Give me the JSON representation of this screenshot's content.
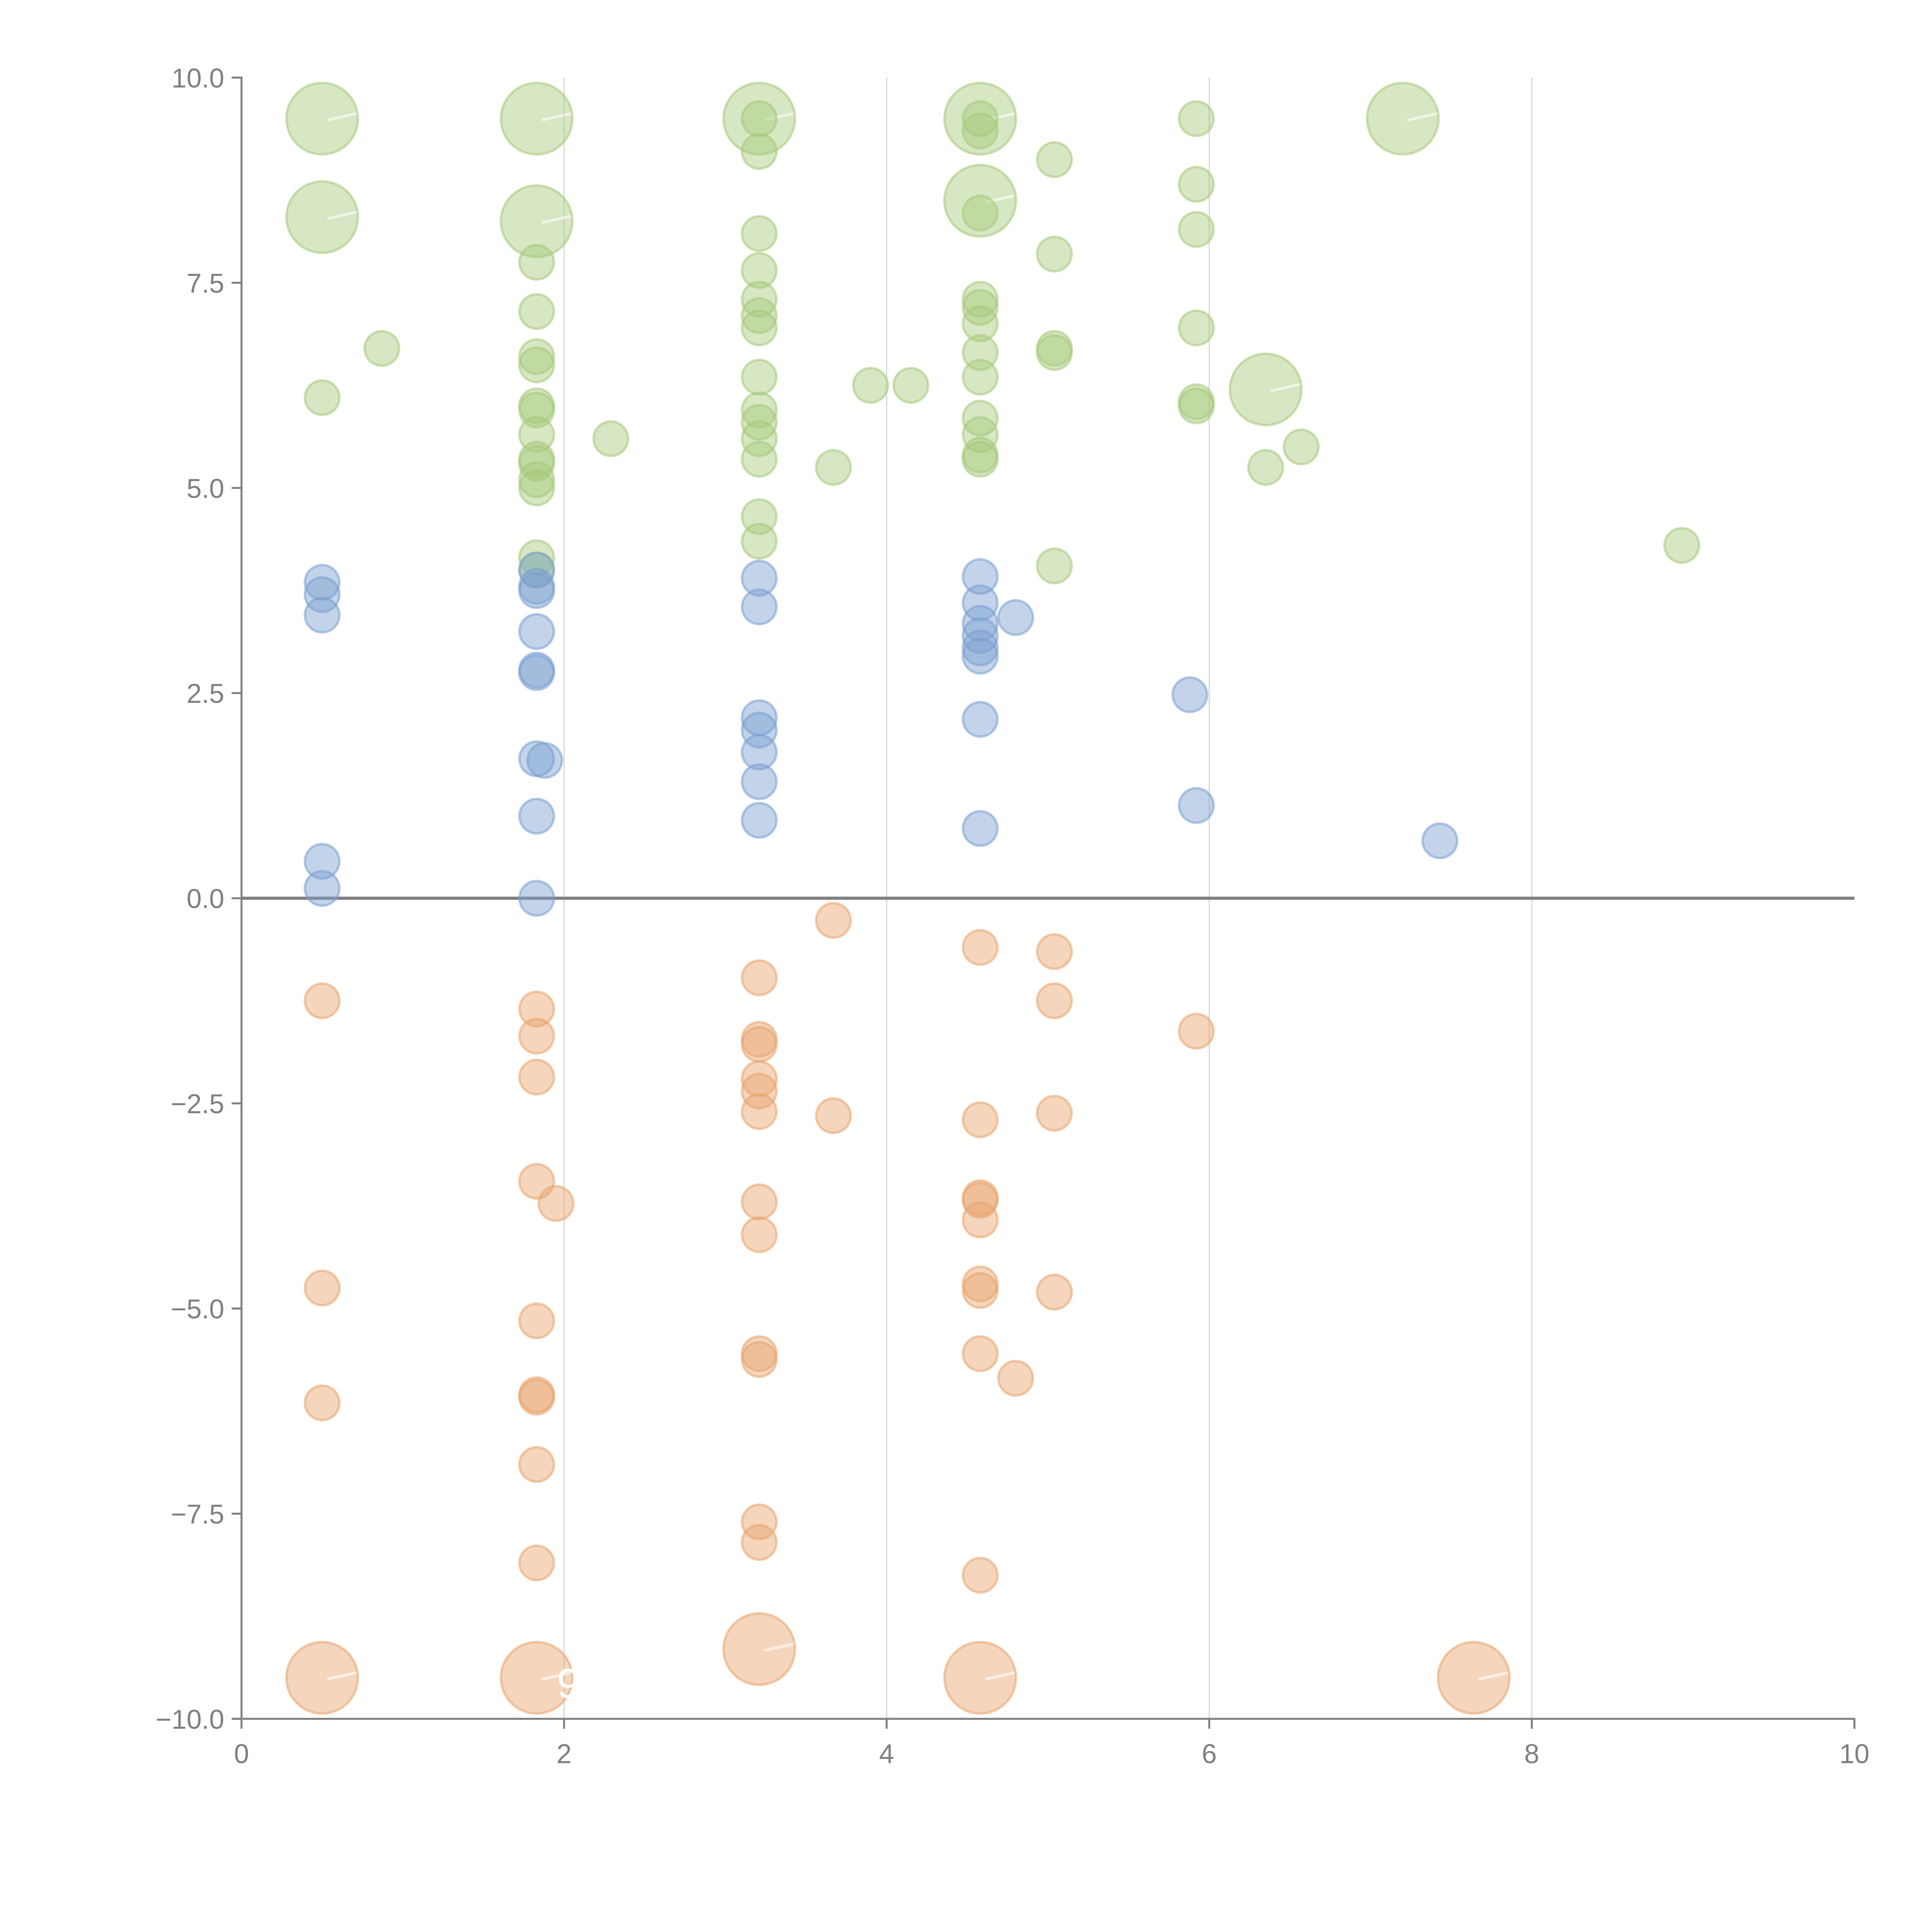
{
  "chart_data": {
    "type": "scatter",
    "title": "",
    "xlabel": "",
    "ylabel": "",
    "xlim": [
      0,
      10
    ],
    "ylim": [
      -10,
      10
    ],
    "grid": "vertical",
    "legend": "none",
    "x_ticks": [
      "0",
      "2",
      "4",
      "6",
      "8",
      "10"
    ],
    "x_tick_values": [
      0,
      2,
      4,
      6,
      8,
      10
    ],
    "y_ticks": [
      "10.0",
      "7.5",
      "5.0",
      "2.5",
      "0.0",
      "−2.5",
      "−5.0",
      "−7.5",
      "−10.0"
    ],
    "y_tick_values": [
      10,
      7.5,
      5,
      2.5,
      0,
      -2.5,
      -5,
      -7.5,
      -10
    ],
    "reference_line_y": 0,
    "annotation": "9",
    "series": [
      {
        "name": "positive-high",
        "color": "#a6c97a",
        "points": [
          [
            0.5,
            9.5,
            3
          ],
          [
            0.5,
            8.3,
            3
          ],
          [
            0.87,
            6.7,
            1
          ],
          [
            0.5,
            6.1,
            1
          ],
          [
            1.83,
            9.5,
            3
          ],
          [
            1.83,
            8.25,
            3
          ],
          [
            1.83,
            7.75,
            1
          ],
          [
            1.83,
            7.15,
            1
          ],
          [
            1.83,
            6.6,
            1
          ],
          [
            1.83,
            6.5,
            1
          ],
          [
            1.83,
            6.0,
            1
          ],
          [
            1.83,
            5.95,
            1
          ],
          [
            1.83,
            5.65,
            1
          ],
          [
            1.83,
            5.35,
            1
          ],
          [
            1.83,
            5.3,
            1
          ],
          [
            1.83,
            5.1,
            1
          ],
          [
            1.83,
            5.0,
            1
          ],
          [
            1.83,
            4.15,
            1
          ],
          [
            1.83,
            4.0,
            1
          ],
          [
            2.29,
            5.6,
            1
          ],
          [
            3.21,
            9.5,
            3
          ],
          [
            3.21,
            9.5,
            1
          ],
          [
            3.21,
            9.1,
            1
          ],
          [
            3.21,
            8.1,
            1
          ],
          [
            3.21,
            7.65,
            1
          ],
          [
            3.21,
            7.3,
            1
          ],
          [
            3.21,
            7.1,
            1
          ],
          [
            3.21,
            6.95,
            1
          ],
          [
            3.21,
            6.35,
            1
          ],
          [
            3.21,
            5.95,
            1
          ],
          [
            3.21,
            5.8,
            1
          ],
          [
            3.21,
            5.6,
            1
          ],
          [
            3.21,
            5.35,
            1
          ],
          [
            3.21,
            4.65,
            1
          ],
          [
            3.21,
            4.35,
            1
          ],
          [
            3.67,
            5.25,
            1
          ],
          [
            3.9,
            6.25,
            1
          ],
          [
            4.15,
            6.25,
            1
          ],
          [
            4.58,
            9.5,
            3
          ],
          [
            4.58,
            9.5,
            1
          ],
          [
            4.58,
            9.35,
            1
          ],
          [
            4.58,
            8.5,
            3
          ],
          [
            4.58,
            8.35,
            1
          ],
          [
            4.58,
            7.3,
            1
          ],
          [
            4.58,
            7.2,
            1
          ],
          [
            4.58,
            7.0,
            1
          ],
          [
            4.58,
            6.65,
            1
          ],
          [
            4.58,
            6.35,
            1
          ],
          [
            4.58,
            5.85,
            1
          ],
          [
            4.58,
            5.65,
            1
          ],
          [
            4.58,
            5.4,
            1
          ],
          [
            4.58,
            5.35,
            1
          ],
          [
            5.04,
            9.0,
            1
          ],
          [
            5.04,
            7.85,
            1
          ],
          [
            5.04,
            6.7,
            1
          ],
          [
            5.04,
            6.65,
            1
          ],
          [
            5.04,
            4.05,
            1
          ],
          [
            5.92,
            9.5,
            1
          ],
          [
            5.92,
            8.7,
            1
          ],
          [
            5.92,
            8.15,
            1
          ],
          [
            5.92,
            6.95,
            1
          ],
          [
            5.92,
            6.05,
            1
          ],
          [
            5.92,
            6.0,
            1
          ],
          [
            6.35,
            6.2,
            3
          ],
          [
            6.35,
            5.25,
            1
          ],
          [
            6.57,
            5.5,
            1
          ],
          [
            7.2,
            9.5,
            3
          ],
          [
            8.93,
            4.3,
            1
          ]
        ]
      },
      {
        "name": "positive-low",
        "color": "#7a9fd1",
        "points": [
          [
            0.5,
            3.85,
            1
          ],
          [
            0.5,
            3.7,
            1
          ],
          [
            0.5,
            3.45,
            1
          ],
          [
            0.5,
            0.45,
            1
          ],
          [
            0.5,
            0.12,
            1
          ],
          [
            1.83,
            4.0,
            1
          ],
          [
            1.83,
            3.8,
            1
          ],
          [
            1.83,
            3.75,
            1
          ],
          [
            1.83,
            3.25,
            1
          ],
          [
            1.83,
            2.78,
            1
          ],
          [
            1.83,
            2.75,
            1
          ],
          [
            1.83,
            1.7,
            1
          ],
          [
            1.88,
            1.68,
            1
          ],
          [
            1.83,
            1.0,
            1
          ],
          [
            1.83,
            0.0,
            1
          ],
          [
            3.21,
            3.9,
            1
          ],
          [
            3.21,
            3.55,
            1
          ],
          [
            3.21,
            2.2,
            1
          ],
          [
            3.21,
            2.05,
            1
          ],
          [
            3.21,
            1.78,
            1
          ],
          [
            3.21,
            1.42,
            1
          ],
          [
            3.21,
            0.95,
            1
          ],
          [
            4.58,
            3.92,
            1
          ],
          [
            4.58,
            3.6,
            1
          ],
          [
            4.58,
            3.35,
            1
          ],
          [
            4.58,
            3.2,
            1
          ],
          [
            4.58,
            3.05,
            1
          ],
          [
            4.58,
            2.95,
            1
          ],
          [
            4.58,
            2.18,
            1
          ],
          [
            4.58,
            0.85,
            1
          ],
          [
            4.8,
            3.42,
            1
          ],
          [
            5.88,
            2.48,
            1
          ],
          [
            5.92,
            1.13,
            1
          ],
          [
            7.43,
            0.7,
            1
          ]
        ]
      },
      {
        "name": "negative",
        "color": "#e8a46c",
        "points": [
          [
            0.5,
            -1.25,
            1
          ],
          [
            0.5,
            -4.75,
            1
          ],
          [
            0.5,
            -6.15,
            1
          ],
          [
            0.5,
            -9.5,
            3
          ],
          [
            1.83,
            -1.35,
            1
          ],
          [
            1.83,
            -1.68,
            1
          ],
          [
            1.83,
            -2.18,
            1
          ],
          [
            1.83,
            -3.45,
            1
          ],
          [
            1.95,
            -3.72,
            1
          ],
          [
            1.83,
            -5.15,
            1
          ],
          [
            1.83,
            -6.05,
            1
          ],
          [
            1.83,
            -6.08,
            1
          ],
          [
            1.83,
            -6.9,
            1
          ],
          [
            1.83,
            -8.1,
            1
          ],
          [
            1.83,
            -9.5,
            3
          ],
          [
            3.21,
            -0.97,
            1
          ],
          [
            3.21,
            -1.72,
            1
          ],
          [
            3.21,
            -1.78,
            1
          ],
          [
            3.21,
            -2.2,
            1
          ],
          [
            3.21,
            -2.35,
            1
          ],
          [
            3.21,
            -2.6,
            1
          ],
          [
            3.21,
            -3.7,
            1
          ],
          [
            3.21,
            -4.1,
            1
          ],
          [
            3.21,
            -5.55,
            1
          ],
          [
            3.21,
            -5.62,
            1
          ],
          [
            3.21,
            -7.6,
            1
          ],
          [
            3.21,
            -7.85,
            1
          ],
          [
            3.21,
            -9.15,
            3
          ],
          [
            3.67,
            -0.27,
            1
          ],
          [
            3.67,
            -2.65,
            1
          ],
          [
            4.58,
            -0.6,
            1
          ],
          [
            4.58,
            -2.7,
            1
          ],
          [
            4.58,
            -3.65,
            1
          ],
          [
            4.58,
            -3.68,
            1
          ],
          [
            4.58,
            -3.92,
            1
          ],
          [
            4.58,
            -4.7,
            1
          ],
          [
            4.58,
            -4.78,
            1
          ],
          [
            4.58,
            -5.55,
            1
          ],
          [
            4.8,
            -5.85,
            1
          ],
          [
            4.58,
            -8.25,
            1
          ],
          [
            4.58,
            -9.5,
            3
          ],
          [
            5.04,
            -0.65,
            1
          ],
          [
            5.04,
            -1.25,
            1
          ],
          [
            5.04,
            -2.62,
            1
          ],
          [
            5.04,
            -4.8,
            1
          ],
          [
            5.92,
            -1.62,
            1
          ],
          [
            7.64,
            -9.5,
            3
          ]
        ]
      }
    ],
    "size_legend": {
      "1": "small",
      "3": "large"
    }
  }
}
